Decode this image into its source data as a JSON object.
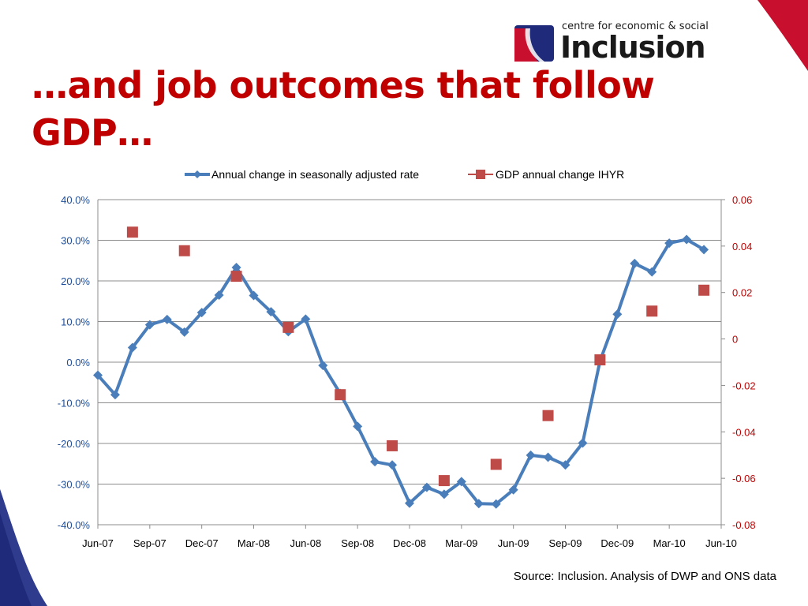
{
  "slide": {
    "title": "…and job outcomes that follow GDP…",
    "source": "Source: Inclusion. Analysis of DWP and ONS data",
    "title_color": "#c00000",
    "accent_red": "#c8102e",
    "accent_navy": "#1f2a7a"
  },
  "logo": {
    "small_text": "centre for economic & social",
    "big_text": "Inclusion"
  },
  "chart_data": {
    "type": "line",
    "categories": [
      "Jun-07",
      "Jul-07",
      "Aug-07",
      "Sep-07",
      "Oct-07",
      "Nov-07",
      "Dec-07",
      "Jan-08",
      "Feb-08",
      "Mar-08",
      "Apr-08",
      "May-08",
      "Jun-08",
      "Jul-08",
      "Aug-08",
      "Sep-08",
      "Oct-08",
      "Nov-08",
      "Dec-08",
      "Jan-09",
      "Feb-09",
      "Mar-09",
      "Apr-09",
      "May-09",
      "Jun-09",
      "Jul-09",
      "Aug-09",
      "Sep-09",
      "Oct-09",
      "Nov-09",
      "Dec-09",
      "Jan-10",
      "Feb-10",
      "Mar-10",
      "Apr-10",
      "May-10",
      "Jun-10"
    ],
    "x_tick_labels": [
      "Jun-07",
      "Sep-07",
      "Dec-07",
      "Mar-08",
      "Jun-08",
      "Sep-08",
      "Dec-08",
      "Mar-09",
      "Jun-09",
      "Sep-09",
      "Dec-09",
      "Mar-10",
      "Jun-10"
    ],
    "left_axis": {
      "ylim": [
        -0.4,
        0.4
      ],
      "ticks": [
        "40.0%",
        "30.0%",
        "20.0%",
        "10.0%",
        "0.0%",
        "-10.0%",
        "-20.0%",
        "-30.0%",
        "-40.0%"
      ],
      "tick_values": [
        0.4,
        0.3,
        0.2,
        0.1,
        0,
        -0.1,
        -0.2,
        -0.3,
        -0.4
      ]
    },
    "right_axis": {
      "ylim": [
        -0.08,
        0.06
      ],
      "ticks": [
        "0.06",
        "0.04",
        "0.02",
        "0",
        "-0.02",
        "-0.04",
        "-0.06",
        "-0.08"
      ],
      "tick_values": [
        0.06,
        0.04,
        0.02,
        0,
        -0.02,
        -0.04,
        -0.06,
        -0.08
      ]
    },
    "grid": true,
    "legend_position": "top",
    "series": [
      {
        "name": "Annual change in seasonally adjusted rate",
        "type": "line",
        "axis": "left",
        "color": "#4a7ebb",
        "marker": "diamond",
        "values": [
          -0.032,
          -0.08,
          0.036,
          0.092,
          0.105,
          0.074,
          0.122,
          0.165,
          0.233,
          0.164,
          0.124,
          0.075,
          0.106,
          -0.008,
          -0.077,
          -0.158,
          -0.245,
          -0.253,
          -0.347,
          -0.308,
          -0.325,
          -0.294,
          -0.348,
          -0.349,
          -0.314,
          -0.229,
          -0.234,
          -0.253,
          -0.199,
          0.003,
          0.118,
          0.243,
          0.222,
          0.293,
          0.302,
          0.277,
          null
        ]
      },
      {
        "name": "GDP annual change IHYR",
        "type": "scatter",
        "axis": "right",
        "color": "#be4b48",
        "marker": "square",
        "values": [
          null,
          null,
          0.046,
          null,
          null,
          0.038,
          null,
          null,
          0.027,
          null,
          null,
          0.005,
          null,
          null,
          -0.024,
          null,
          null,
          -0.046,
          null,
          null,
          -0.061,
          null,
          null,
          -0.054,
          null,
          null,
          -0.033,
          null,
          null,
          -0.009,
          null,
          null,
          0.012,
          null,
          null,
          0.021,
          null
        ]
      }
    ]
  }
}
